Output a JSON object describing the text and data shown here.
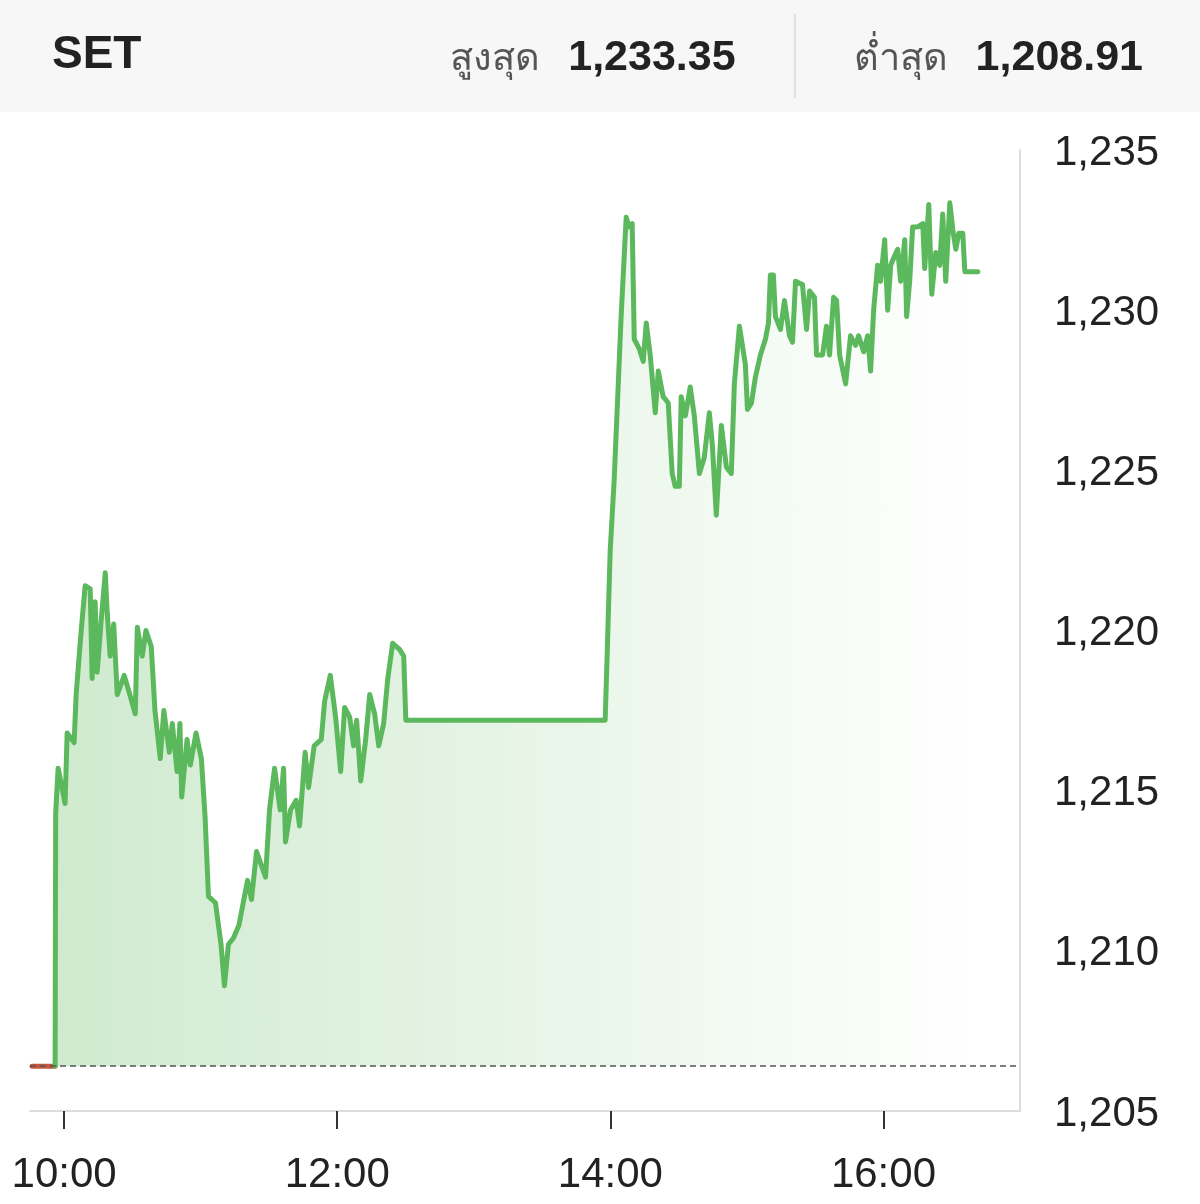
{
  "chart_data": {
    "type": "area",
    "title": "SET",
    "annotations": [
      "สูงสุด 1,233.35",
      "ต่ำสุด 1,208.91"
    ],
    "xlim": [
      9.75,
      17
    ],
    "xticks": [
      {
        "value": 10,
        "label": "10:00"
      },
      {
        "value": 12,
        "label": "12:00"
      },
      {
        "value": 14,
        "label": "14:00"
      },
      {
        "value": 16,
        "label": "16:00"
      }
    ],
    "ylim": [
      1205,
      1235
    ],
    "yticks": [
      {
        "value": 1205,
        "label": "1,205"
      },
      {
        "value": 1210,
        "label": "1,210"
      },
      {
        "value": 1215,
        "label": "1,215"
      },
      {
        "value": 1220,
        "label": "1,220"
      },
      {
        "value": 1225,
        "label": "1,225"
      },
      {
        "value": 1230,
        "label": "1,230"
      },
      {
        "value": 1235,
        "label": "1,235"
      }
    ],
    "ref_lines": [
      {
        "axis": "y",
        "value": 1206.4,
        "color": "#555555",
        "line_style": "dashed"
      }
    ],
    "series": [
      {
        "type": "line",
        "color": "#c8553d",
        "x": [
          9.765,
          9.934
        ],
        "values": [
          1206.4,
          1206.4
        ]
      },
      {
        "color": "#5cb85c",
        "x": [
          9.934,
          9.938,
          9.956,
          10.007,
          10.022,
          10.073,
          10.088,
          10.125,
          10.154,
          10.191,
          10.205,
          10.227,
          10.242,
          10.271,
          10.301,
          10.315,
          10.337,
          10.363,
          10.389,
          10.44,
          10.481,
          10.521,
          10.536,
          10.572,
          10.599,
          10.638,
          10.665,
          10.704,
          10.73,
          10.77,
          10.792,
          10.827,
          10.848,
          10.861,
          10.9,
          10.924,
          10.966,
          11.005,
          11.032,
          11.057,
          11.108,
          11.149,
          11.174,
          11.203,
          11.24,
          11.28,
          11.343,
          11.372,
          11.409,
          11.475,
          11.504,
          11.541,
          11.582,
          11.607,
          11.621,
          11.658,
          11.699,
          11.724,
          11.765,
          11.79,
          11.831,
          11.883,
          11.908,
          11.949,
          11.988,
          12.025,
          12.054,
          12.091,
          12.12,
          12.142,
          12.172,
          12.208,
          12.238,
          12.274,
          12.304,
          12.34,
          12.37,
          12.406,
          12.458,
          12.487,
          12.502,
          13.962,
          13.977,
          13.999,
          14.028,
          14.079,
          14.116,
          14.138,
          14.16,
          14.175,
          14.211,
          14.241,
          14.263,
          14.292,
          14.329,
          14.351,
          14.387,
          14.424,
          14.453,
          14.475,
          14.505,
          14.519,
          14.549,
          14.585,
          14.615,
          14.652,
          14.688,
          14.725,
          14.747,
          14.776,
          14.813,
          14.85,
          14.886,
          14.908,
          14.945,
          14.989,
          15.004,
          15.033,
          15.062,
          15.099,
          15.136,
          15.158,
          15.172,
          15.194,
          15.209,
          15.246,
          15.275,
          15.312,
          15.334,
          15.356,
          15.407,
          15.437,
          15.459,
          15.495,
          15.51,
          15.554,
          15.583,
          15.605,
          15.635,
          15.657,
          15.679,
          15.723,
          15.759,
          15.796,
          15.818,
          15.855,
          15.884,
          15.906,
          15.928,
          15.957,
          15.979,
          16.009,
          16.031,
          16.053,
          16.082,
          16.104,
          16.126,
          16.156,
          16.17,
          16.192,
          16.214,
          16.251,
          16.288,
          16.302,
          16.332,
          16.354,
          16.383,
          16.412,
          16.434,
          16.456,
          16.486,
          16.508,
          16.53,
          16.552,
          16.581,
          16.596,
          16.691
        ],
        "values": [
          1206.4,
          1214.3,
          1215.7,
          1214.6,
          1216.8,
          1216.5,
          1218.0,
          1220.0,
          1221.4,
          1221.3,
          1218.5,
          1220.9,
          1218.7,
          1220.3,
          1221.8,
          1220.6,
          1219.2,
          1220.2,
          1218.0,
          1218.6,
          1218.0,
          1217.4,
          1220.1,
          1219.2,
          1220.0,
          1219.5,
          1217.5,
          1216.0,
          1217.5,
          1216.2,
          1217.1,
          1215.6,
          1217.1,
          1214.8,
          1216.6,
          1215.8,
          1216.8,
          1216.0,
          1214.2,
          1211.7,
          1211.5,
          1210.2,
          1208.91,
          1210.2,
          1210.4,
          1210.8,
          1212.2,
          1211.6,
          1213.1,
          1212.3,
          1214.4,
          1215.7,
          1214.4,
          1215.7,
          1213.4,
          1214.4,
          1214.7,
          1213.9,
          1216.2,
          1215.1,
          1216.4,
          1216.6,
          1217.8,
          1218.6,
          1217.3,
          1215.6,
          1217.6,
          1217.3,
          1216.4,
          1217.2,
          1215.3,
          1216.6,
          1218.0,
          1217.4,
          1216.4,
          1217.1,
          1218.5,
          1219.6,
          1219.4,
          1219.2,
          1217.2,
          1217.2,
          1219.3,
          1222.5,
          1224.7,
          1229.8,
          1232.9,
          1232.6,
          1232.7,
          1229.1,
          1228.8,
          1228.4,
          1229.6,
          1228.6,
          1226.8,
          1228.1,
          1227.3,
          1227.1,
          1224.9,
          1224.5,
          1224.5,
          1227.3,
          1226.7,
          1227.6,
          1226.7,
          1224.9,
          1225.4,
          1226.8,
          1225.8,
          1223.6,
          1226.4,
          1225.1,
          1224.9,
          1227.7,
          1229.5,
          1228.3,
          1226.9,
          1227.1,
          1227.9,
          1228.6,
          1229.1,
          1229.6,
          1231.1,
          1231.1,
          1229.8,
          1229.4,
          1230.3,
          1229.2,
          1229.0,
          1230.9,
          1230.8,
          1229.4,
          1230.6,
          1230.4,
          1228.6,
          1228.6,
          1229.5,
          1228.6,
          1230.4,
          1230.3,
          1228.6,
          1227.7,
          1229.2,
          1228.9,
          1229.2,
          1228.7,
          1229.2,
          1228.1,
          1230.0,
          1231.4,
          1230.9,
          1232.2,
          1230.0,
          1231.4,
          1231.7,
          1231.9,
          1230.9,
          1232.2,
          1229.8,
          1230.9,
          1232.6,
          1232.6,
          1232.7,
          1231.3,
          1233.3,
          1230.5,
          1231.8,
          1231.4,
          1233.0,
          1230.9,
          1233.35,
          1232.5,
          1231.9,
          1232.4,
          1232.4,
          1231.2,
          1231.2
        ]
      }
    ]
  }
}
